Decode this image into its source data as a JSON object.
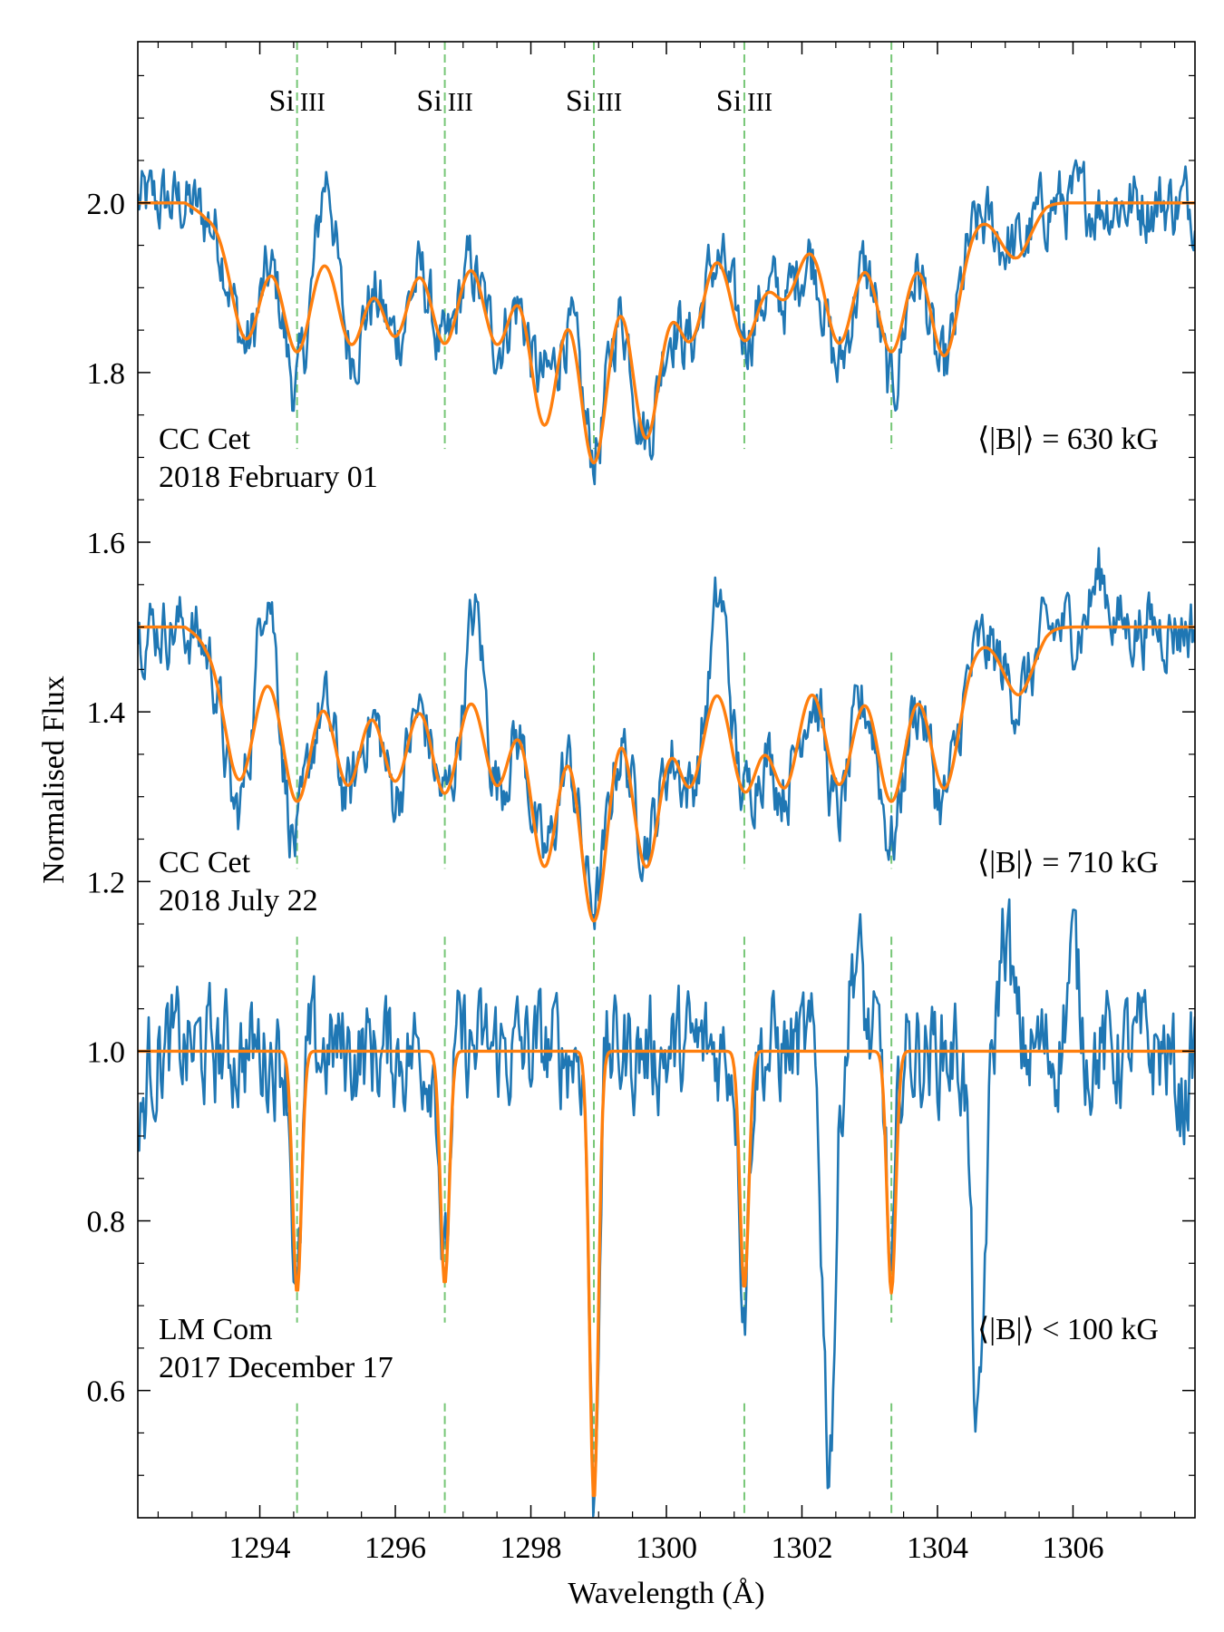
{
  "chart_data": {
    "type": "line",
    "xlabel": "Wavelength (Å)",
    "ylabel": "Normalised Flux",
    "xlim": [
      1292.2,
      1307.8
    ],
    "ylim": [
      0.45,
      2.19
    ],
    "xticks": [
      {
        "v": 1294,
        "label": "1294"
      },
      {
        "v": 1296,
        "label": "1296"
      },
      {
        "v": 1298,
        "label": "1298"
      },
      {
        "v": 1300,
        "label": "1300"
      },
      {
        "v": 1302,
        "label": "1302"
      },
      {
        "v": 1304,
        "label": "1304"
      },
      {
        "v": 1306,
        "label": "1306"
      }
    ],
    "yticks": [
      {
        "v": 0.6,
        "label": "0.6"
      },
      {
        "v": 0.8,
        "label": "0.8"
      },
      {
        "v": 1.0,
        "label": "1.0"
      },
      {
        "v": 1.2,
        "label": "1.2"
      },
      {
        "v": 1.4,
        "label": "1.4"
      },
      {
        "v": 1.6,
        "label": "1.6"
      },
      {
        "v": 1.8,
        "label": "1.8"
      },
      {
        "v": 2.0,
        "label": "2.0"
      }
    ],
    "grid": false,
    "colors": {
      "observed": "#1f77b4",
      "model": "#ff7f0e",
      "lines": "#77c777"
    },
    "line_markers": [
      {
        "wavelength": 1294.55,
        "label": "Si III",
        "el": "Si",
        "ion": "III"
      },
      {
        "wavelength": 1296.73,
        "label": "Si III",
        "el": "Si",
        "ion": "III"
      },
      {
        "wavelength": 1298.93,
        "label": "Si III",
        "el": "Si",
        "ion": "III"
      },
      {
        "wavelength": 1301.15,
        "label": "Si III",
        "el": "Si",
        "ion": "III"
      },
      {
        "wavelength": 1303.32,
        "label": "Si III",
        "el": "Si",
        "ion": "III"
      }
    ],
    "spectra": [
      {
        "target": "CC Cet",
        "date": "2018 February 01",
        "field": "⟨|B|⟩ = 630 kG",
        "offset": 1.0,
        "model_minima": [
          {
            "x": 1293.8,
            "y": 1.855
          },
          {
            "x": 1294.55,
            "y": 1.84
          },
          {
            "x": 1295.35,
            "y": 1.85
          },
          {
            "x": 1296.0,
            "y": 1.86
          },
          {
            "x": 1296.73,
            "y": 1.85
          },
          {
            "x": 1297.5,
            "y": 1.85
          },
          {
            "x": 1298.2,
            "y": 1.755
          },
          {
            "x": 1298.93,
            "y": 1.71
          },
          {
            "x": 1299.7,
            "y": 1.74
          },
          {
            "x": 1300.35,
            "y": 1.855
          },
          {
            "x": 1301.15,
            "y": 1.855
          },
          {
            "x": 1301.75,
            "y": 1.905
          },
          {
            "x": 1302.55,
            "y": 1.85
          },
          {
            "x": 1303.32,
            "y": 1.84
          },
          {
            "x": 1304.1,
            "y": 1.835
          },
          {
            "x": 1305.15,
            "y": 1.95
          }
        ],
        "observed_features": [
          {
            "x": 1293.8,
            "y": 1.83
          },
          {
            "x": 1294.5,
            "y": 1.78
          },
          {
            "x": 1295.0,
            "y": 2.05
          },
          {
            "x": 1295.3,
            "y": 1.83
          },
          {
            "x": 1296.7,
            "y": 1.82
          },
          {
            "x": 1297.5,
            "y": 1.84
          },
          {
            "x": 1298.2,
            "y": 1.8
          },
          {
            "x": 1298.93,
            "y": 1.71
          },
          {
            "x": 1299.7,
            "y": 1.73
          },
          {
            "x": 1301.15,
            "y": 1.85
          },
          {
            "x": 1302.5,
            "y": 1.8
          },
          {
            "x": 1303.32,
            "y": 1.77
          },
          {
            "x": 1304.0,
            "y": 1.8
          },
          {
            "x": 1305.15,
            "y": 1.95
          }
        ]
      },
      {
        "target": "CC Cet",
        "date": "2018 July 22",
        "field": "⟨|B|⟩ = 710 kG",
        "offset": 0.5,
        "model_minima": [
          {
            "x": 1293.7,
            "y": 1.335
          },
          {
            "x": 1294.55,
            "y": 1.31
          },
          {
            "x": 1295.3,
            "y": 1.33
          },
          {
            "x": 1296.0,
            "y": 1.335
          },
          {
            "x": 1296.73,
            "y": 1.32
          },
          {
            "x": 1297.5,
            "y": 1.33
          },
          {
            "x": 1298.2,
            "y": 1.235
          },
          {
            "x": 1298.93,
            "y": 1.17
          },
          {
            "x": 1299.7,
            "y": 1.235
          },
          {
            "x": 1300.35,
            "y": 1.33
          },
          {
            "x": 1301.15,
            "y": 1.325
          },
          {
            "x": 1301.75,
            "y": 1.33
          },
          {
            "x": 1302.55,
            "y": 1.33
          },
          {
            "x": 1303.32,
            "y": 1.31
          },
          {
            "x": 1304.1,
            "y": 1.325
          },
          {
            "x": 1305.2,
            "y": 1.435
          }
        ],
        "observed_features": [
          {
            "x": 1293.6,
            "y": 1.28
          },
          {
            "x": 1294.1,
            "y": 1.58
          },
          {
            "x": 1294.5,
            "y": 1.24
          },
          {
            "x": 1295.3,
            "y": 1.3
          },
          {
            "x": 1296.0,
            "y": 1.3
          },
          {
            "x": 1296.7,
            "y": 1.3
          },
          {
            "x": 1297.2,
            "y": 1.53
          },
          {
            "x": 1298.2,
            "y": 1.23
          },
          {
            "x": 1298.93,
            "y": 1.18
          },
          {
            "x": 1299.7,
            "y": 1.26
          },
          {
            "x": 1300.8,
            "y": 1.55
          },
          {
            "x": 1301.15,
            "y": 1.3
          },
          {
            "x": 1302.5,
            "y": 1.27
          },
          {
            "x": 1303.32,
            "y": 1.24
          },
          {
            "x": 1304.0,
            "y": 1.3
          },
          {
            "x": 1306.4,
            "y": 1.57
          }
        ]
      },
      {
        "target": "LM Com",
        "date": "2017 December 17",
        "field": "⟨|B|⟩ < 100 kG",
        "offset": 0.0,
        "model_minima": [
          {
            "x": 1294.55,
            "y": 0.715
          },
          {
            "x": 1296.73,
            "y": 0.725
          },
          {
            "x": 1298.93,
            "y": 0.47
          },
          {
            "x": 1301.15,
            "y": 0.72
          },
          {
            "x": 1303.32,
            "y": 0.715
          }
        ],
        "observed_features": [
          {
            "x": 1292.2,
            "y": 0.87
          },
          {
            "x": 1294.55,
            "y": 0.69
          },
          {
            "x": 1296.73,
            "y": 0.73
          },
          {
            "x": 1298.93,
            "y": 0.47
          },
          {
            "x": 1301.15,
            "y": 0.72
          },
          {
            "x": 1302.4,
            "y": 0.45
          },
          {
            "x": 1302.8,
            "y": 1.14
          },
          {
            "x": 1303.32,
            "y": 0.72
          },
          {
            "x": 1304.6,
            "y": 0.45
          },
          {
            "x": 1305.0,
            "y": 1.17
          },
          {
            "x": 1306.0,
            "y": 1.13
          },
          {
            "x": 1307.6,
            "y": 0.93
          }
        ]
      }
    ]
  }
}
